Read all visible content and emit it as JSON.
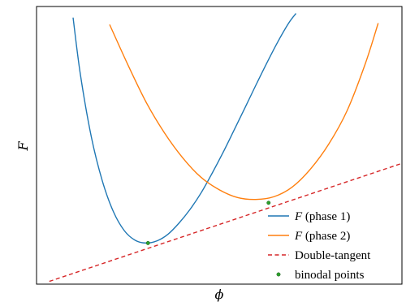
{
  "chart_data": {
    "type": "line",
    "title": "",
    "xlabel": "ϕ",
    "ylabel": "F",
    "xlim": [
      0,
      10
    ],
    "ylim": [
      0,
      10
    ],
    "x_ticks": [],
    "y_ticks": [],
    "grid": false,
    "legend_position": "lower-right",
    "series": [
      {
        "name": "F (phase 1)",
        "name_italic": "F",
        "name_rest": " (phase 1)",
        "style": "solid",
        "color": "#1f77b4",
        "x": [
          1.0,
          1.2,
          1.5,
          1.8,
          2.1,
          2.4,
          2.7,
          3.0,
          3.3,
          3.6,
          3.9,
          4.2,
          4.5,
          4.8,
          5.1,
          5.4,
          5.7,
          6.0,
          6.3,
          6.6,
          6.9,
          7.1
        ],
        "y": [
          9.6,
          7.55,
          5.3,
          3.72,
          2.62,
          1.93,
          1.58,
          1.48,
          1.56,
          1.8,
          2.2,
          2.69,
          3.28,
          3.98,
          4.73,
          5.53,
          6.34,
          7.16,
          7.96,
          8.72,
          9.4,
          9.75
        ]
      },
      {
        "name": "F (phase 2)",
        "name_italic": "F",
        "name_rest": " (phase 2)",
        "style": "solid",
        "color": "#ff7f0e",
        "x": [
          2.0,
          2.5,
          3.0,
          3.5,
          4.0,
          4.5,
          5.0,
          5.5,
          6.0,
          6.5,
          7.0,
          7.5,
          8.0,
          8.5,
          9.0,
          9.35
        ],
        "y": [
          9.35,
          7.9,
          6.55,
          5.45,
          4.55,
          3.85,
          3.4,
          3.12,
          3.05,
          3.15,
          3.5,
          4.15,
          5.05,
          6.25,
          7.95,
          9.4
        ]
      },
      {
        "name": "Double-tangent",
        "style": "dashed",
        "color": "#d62728",
        "x": [
          0.35,
          10.0
        ],
        "y": [
          0.1,
          4.35
        ]
      }
    ],
    "points": {
      "name": "binodal points",
      "color": "#2ca02c",
      "x": [
        3.05,
        6.35
      ],
      "y": [
        1.48,
        2.93
      ]
    }
  }
}
